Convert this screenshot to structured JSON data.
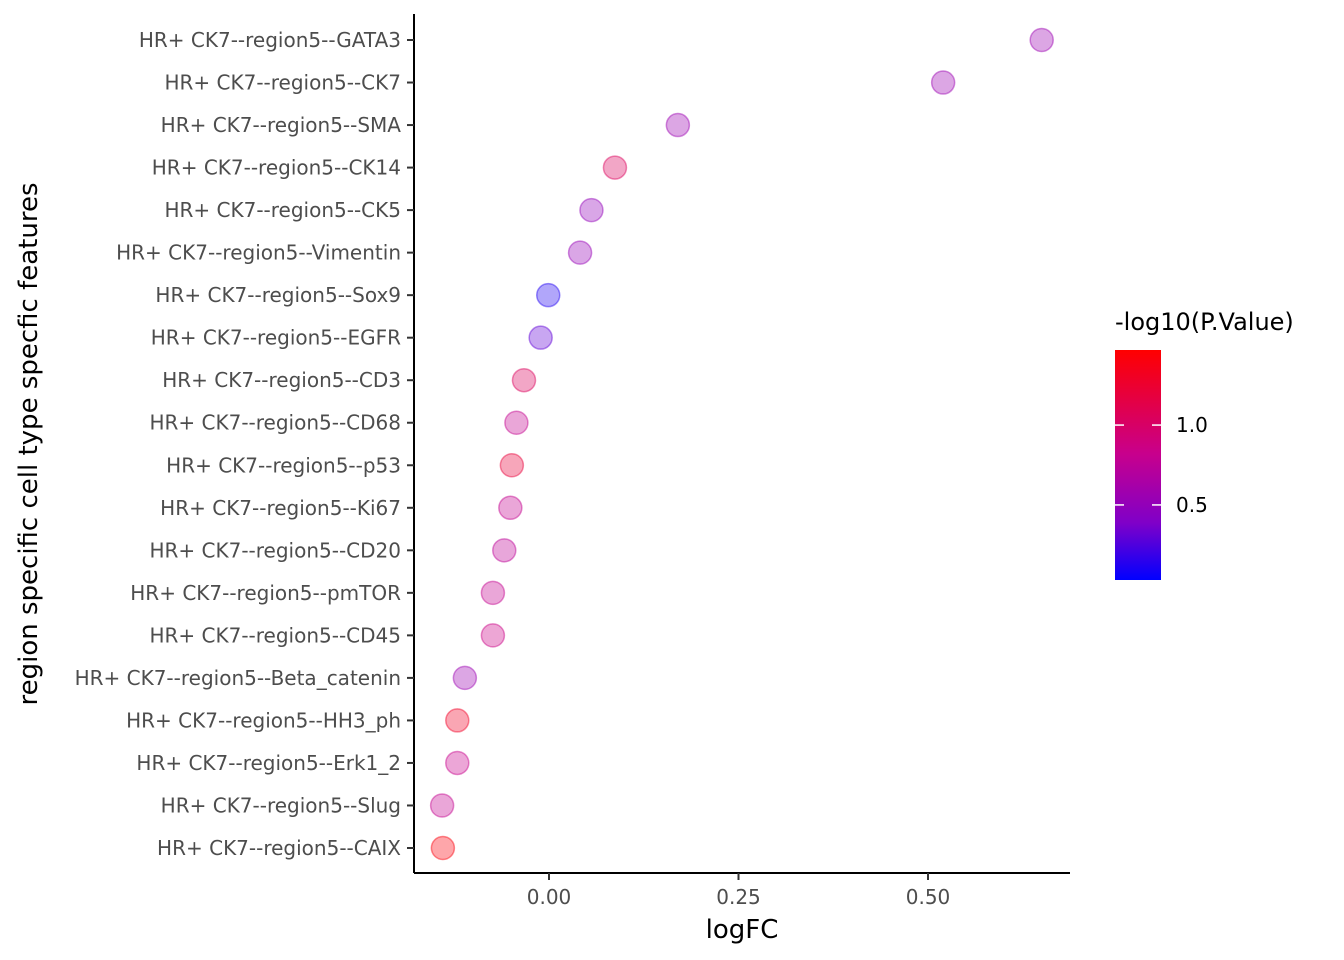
{
  "chart_data": {
    "type": "scatter",
    "xlabel": "logFC",
    "ylabel": "region specific cell type specfic features",
    "xlim": [
      -0.18,
      0.7
    ],
    "x_ticks": [
      "0.00",
      "0.25",
      "0.50"
    ],
    "x_tick_values": [
      0.0,
      0.25,
      0.5
    ],
    "grid": false,
    "legend": {
      "title": "-log10(P.Value)",
      "placement": "right",
      "range": [
        0.03,
        1.47
      ],
      "ticks": [
        "0.5",
        "1.0"
      ],
      "tick_values": [
        0.5,
        1.0
      ],
      "color_low": "#0000ff",
      "color_high": "#ff0000"
    },
    "points": [
      {
        "label": "HR+ CK7--region5--GATA3",
        "x": 0.65,
        "p": 0.55
      },
      {
        "label": "HR+ CK7--region5--CK7",
        "x": 0.52,
        "p": 0.55
      },
      {
        "label": "HR+ CK7--region5--SMA",
        "x": 0.17,
        "p": 0.55
      },
      {
        "label": "HR+ CK7--region5--CK14",
        "x": 0.087,
        "p": 1.05
      },
      {
        "label": "HR+ CK7--region5--CK5",
        "x": 0.056,
        "p": 0.5
      },
      {
        "label": "HR+ CK7--region5--Vimentin",
        "x": 0.041,
        "p": 0.52
      },
      {
        "label": "HR+ CK7--region5--Sox9",
        "x": -0.001,
        "p": 0.12
      },
      {
        "label": "HR+ CK7--region5--EGFR",
        "x": -0.011,
        "p": 0.3
      },
      {
        "label": "HR+ CK7--region5--CD3",
        "x": -0.033,
        "p": 1.05
      },
      {
        "label": "HR+ CK7--region5--CD68",
        "x": -0.043,
        "p": 0.8
      },
      {
        "label": "HR+ CK7--region5--p53",
        "x": -0.049,
        "p": 1.2
      },
      {
        "label": "HR+ CK7--region5--Ki67",
        "x": -0.051,
        "p": 0.8
      },
      {
        "label": "HR+ CK7--region5--CD20",
        "x": -0.059,
        "p": 0.75
      },
      {
        "label": "HR+ CK7--region5--pmTOR",
        "x": -0.074,
        "p": 0.8
      },
      {
        "label": "HR+ CK7--region5--CD45",
        "x": -0.074,
        "p": 0.85
      },
      {
        "label": "HR+ CK7--region5--Beta_catenin",
        "x": -0.111,
        "p": 0.55
      },
      {
        "label": "HR+ CK7--region5--HH3_ph",
        "x": -0.121,
        "p": 1.3
      },
      {
        "label": "HR+ CK7--region5--Erk1_2",
        "x": -0.121,
        "p": 0.82
      },
      {
        "label": "HR+ CK7--region5--Slug",
        "x": -0.141,
        "p": 0.8
      },
      {
        "label": "HR+ CK7--region5--CAIX",
        "x": -0.14,
        "p": 1.42
      }
    ]
  }
}
